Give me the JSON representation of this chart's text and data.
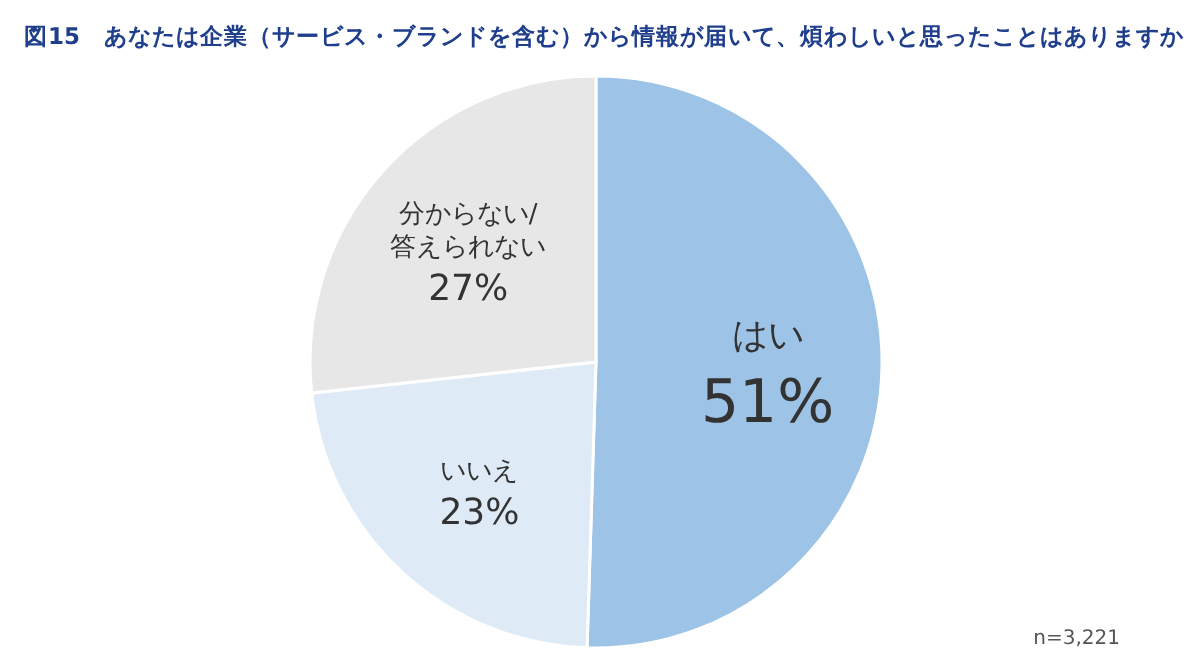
{
  "chart_data": {
    "type": "pie",
    "title": "図15　あなたは企業（サービス・ブランドを含む）から情報が届いて、煩わしいと思ったことはありますか",
    "categories": [
      "はい",
      "いいえ",
      "分からない/\n答えられない"
    ],
    "values": [
      51,
      23,
      27
    ],
    "colors": [
      "#9dc3e6",
      "#deebf7",
      "#e7e7e7"
    ],
    "value_labels": [
      "51%",
      "23%",
      "27%"
    ],
    "annotations": [
      "n=3,221"
    ]
  }
}
